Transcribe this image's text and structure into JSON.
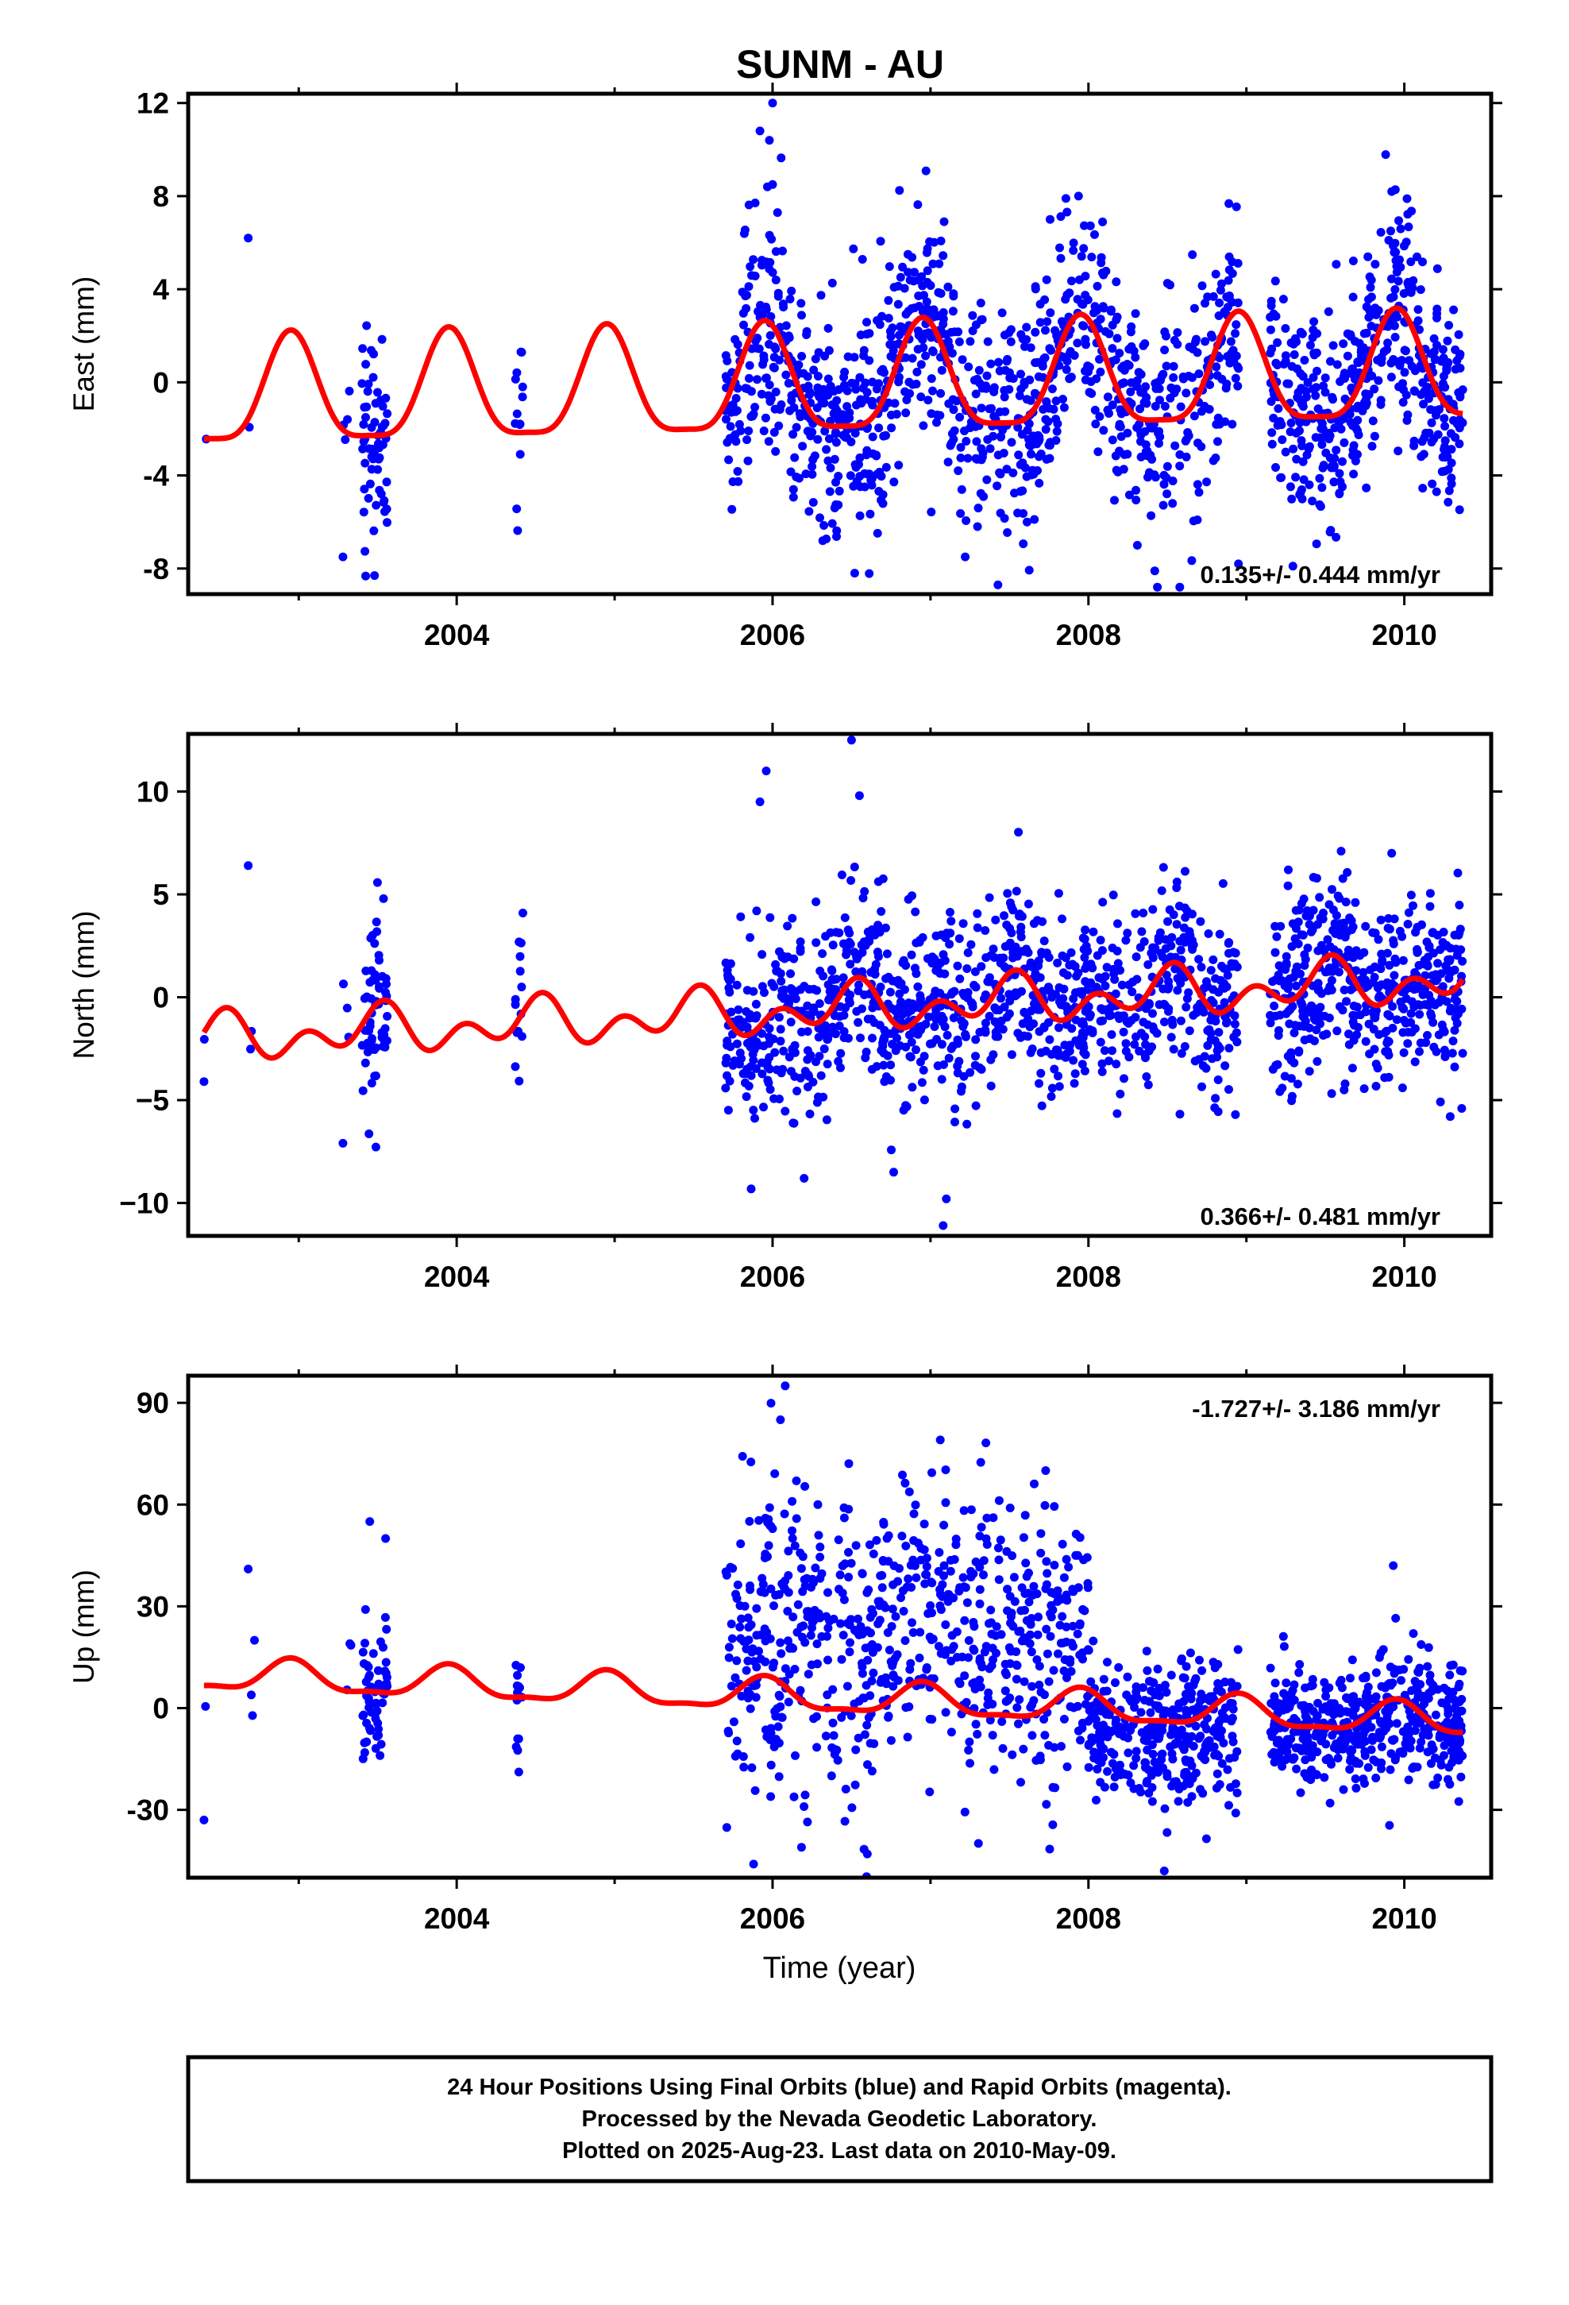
{
  "title": "SUNM - AU",
  "x_axis_label": "Time (year)",
  "caption": [
    "24 Hour Positions Using Final Orbits (blue) and Rapid Orbits (magenta).",
    "Processed by the Nevada Geodetic Laboratory.",
    "Plotted on 2025-Aug-23. Last data on 2010-May-09."
  ],
  "colors": {
    "points": "#0000ff",
    "model": "#ff0000",
    "frame": "#000000"
  },
  "chart_data": [
    {
      "type": "scatter",
      "component": "East",
      "ylabel": "East (mm)",
      "xlim": [
        2002.3,
        2010.55
      ],
      "ylim": [
        -9.1,
        12.4
      ],
      "yticks": [
        -8,
        -4,
        0,
        4,
        8,
        12
      ],
      "ytick_labels": [
        "-8",
        "-4",
        "0",
        "4",
        "8",
        "12"
      ],
      "xticks": [
        2004,
        2006,
        2008,
        2010
      ],
      "xtick_labels": [
        "2004",
        "2006",
        "2008",
        "2010"
      ],
      "rate_text": "0.135+/- 0.444 mm/yr",
      "rate_position": "bottom-right",
      "seasonal_model": {
        "mean": -0.2,
        "rate": 0.135,
        "t0": 2006.3,
        "annual_amplitude": 2.3,
        "annual_peak_phase": 0.95,
        "semiannual_amplitude": 0.6,
        "semiannual_peak_phase": 0.45
      },
      "scatter_spread": 2.4,
      "segments": [
        {
          "start": 2002.4,
          "end": 2002.42,
          "count": 1
        },
        {
          "start": 2002.68,
          "end": 2002.7,
          "count": 1
        },
        {
          "start": 2003.28,
          "end": 2003.34,
          "count": 4
        },
        {
          "start": 2003.4,
          "end": 2003.56,
          "count": 60
        },
        {
          "start": 2004.37,
          "end": 2004.42,
          "count": 14
        },
        {
          "start": 2005.7,
          "end": 2008.95,
          "count": 1050
        },
        {
          "start": 2009.15,
          "end": 2010.37,
          "count": 460
        }
      ],
      "outliers": [
        [
          2005.92,
          10.8
        ],
        [
          2005.98,
          10.4
        ],
        [
          2006.0,
          12.0
        ],
        [
          2006.0,
          8.5
        ],
        [
          2006.52,
          -8.2
        ],
        [
          2007.22,
          -7.5
        ],
        [
          2008.42,
          -8.1
        ],
        [
          2008.95,
          -7.8
        ],
        [
          2009.92,
          8.2
        ],
        [
          2002.68,
          6.2
        ],
        [
          2003.28,
          -7.5
        ],
        [
          2003.48,
          -8.3
        ]
      ]
    },
    {
      "type": "scatter",
      "component": "North",
      "ylabel": "North (mm)",
      "xlim": [
        2002.3,
        2010.55
      ],
      "ylim": [
        -11.6,
        12.8
      ],
      "yticks": [
        -10,
        -5,
        0,
        5,
        10
      ],
      "ytick_labels": [
        "−10",
        "−5",
        "0",
        "5",
        "10"
      ],
      "xticks": [
        2004,
        2006,
        2008,
        2010
      ],
      "xtick_labels": [
        "2004",
        "2006",
        "2008",
        "2010"
      ],
      "rate_text": "0.366+/- 0.481 mm/yr",
      "rate_position": "bottom-right",
      "seasonal_model": {
        "mean": -0.6,
        "rate": 0.366,
        "t0": 2006.3,
        "annual_amplitude": 0.7,
        "annual_peak_phase": 0.5,
        "semiannual_amplitude": 0.8,
        "semiannual_peak_phase": 0.05
      },
      "scatter_spread": 2.3,
      "segments": [
        {
          "start": 2002.4,
          "end": 2002.42,
          "count": 1
        },
        {
          "start": 2002.68,
          "end": 2002.72,
          "count": 2
        },
        {
          "start": 2003.28,
          "end": 2003.34,
          "count": 3
        },
        {
          "start": 2003.4,
          "end": 2003.56,
          "count": 60
        },
        {
          "start": 2004.37,
          "end": 2004.42,
          "count": 14
        },
        {
          "start": 2005.7,
          "end": 2008.95,
          "count": 1050
        },
        {
          "start": 2009.15,
          "end": 2010.37,
          "count": 460
        }
      ],
      "outliers": [
        [
          2005.92,
          9.5
        ],
        [
          2005.96,
          11.0
        ],
        [
          2006.5,
          12.5
        ],
        [
          2006.55,
          9.8
        ],
        [
          2007.08,
          -11.1
        ],
        [
          2007.1,
          -9.8
        ],
        [
          2006.2,
          -8.8
        ],
        [
          2002.68,
          6.4
        ],
        [
          2003.28,
          -7.1
        ],
        [
          2002.4,
          -4.1
        ],
        [
          2009.6,
          7.1
        ],
        [
          2009.92,
          7.0
        ]
      ]
    },
    {
      "type": "scatter",
      "component": "Up",
      "ylabel": "Up (mm)",
      "xlim": [
        2002.3,
        2010.55
      ],
      "ylim": [
        -50,
        98
      ],
      "yticks": [
        -30,
        0,
        30,
        60,
        90
      ],
      "ytick_labels": [
        "-30",
        "0",
        "30",
        "60",
        "90"
      ],
      "xticks": [
        2004,
        2006,
        2008,
        2010
      ],
      "xtick_labels": [
        "2004",
        "2006",
        "2008",
        "2010"
      ],
      "rate_text": "-1.727+/- 3.186 mm/yr",
      "rate_position": "top-right",
      "seasonal_model": {
        "mean": 3.0,
        "rate": -1.727,
        "t0": 2006.3,
        "annual_amplitude": 4.5,
        "annual_peak_phase": 0.95,
        "semiannual_amplitude": 1.5,
        "semiannual_peak_phase": 0.45
      },
      "scatter_spread": 10.0,
      "segments": [
        {
          "start": 2002.4,
          "end": 2002.42,
          "count": 1
        },
        {
          "start": 2002.68,
          "end": 2002.72,
          "count": 2
        },
        {
          "start": 2003.28,
          "end": 2003.34,
          "count": 3
        },
        {
          "start": 2003.4,
          "end": 2003.56,
          "count": 60
        },
        {
          "start": 2004.37,
          "end": 2004.42,
          "count": 14
        },
        {
          "start": 2005.7,
          "end": 2008.0,
          "count": 700,
          "offset": 22,
          "spread": 22
        },
        {
          "start": 2008.0,
          "end": 2008.95,
          "count": 350,
          "offset": -6,
          "spread": 11
        },
        {
          "start": 2009.15,
          "end": 2010.37,
          "count": 460,
          "offset": -2,
          "spread": 9
        }
      ],
      "outliers": [
        [
          2006.08,
          95
        ],
        [
          2006.05,
          85
        ],
        [
          2002.4,
          -33
        ],
        [
          2002.68,
          41
        ],
        [
          2002.72,
          20
        ],
        [
          2003.45,
          55
        ],
        [
          2003.55,
          50
        ],
        [
          2008.48,
          -48
        ],
        [
          2009.93,
          42
        ],
        [
          2005.88,
          -46
        ],
        [
          2006.6,
          -43
        ]
      ]
    }
  ]
}
